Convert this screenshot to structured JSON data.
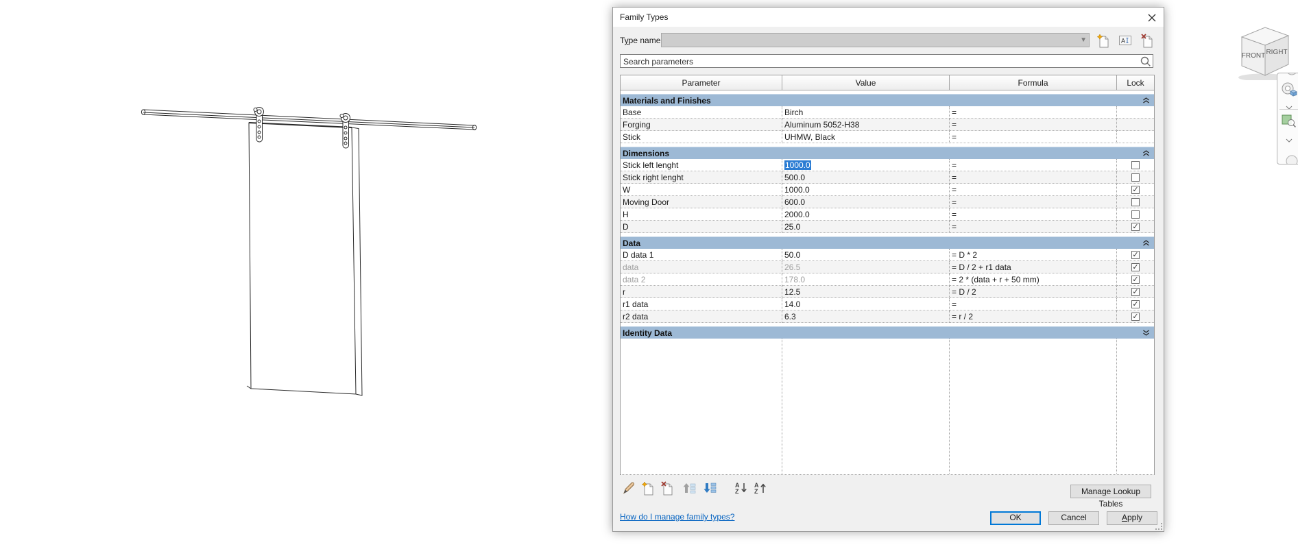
{
  "dialog": {
    "title": "Family Types",
    "type_name": {
      "label": "Type name:",
      "mnemonic_index": 1,
      "value": ""
    },
    "search": {
      "placeholder": "Search parameters"
    },
    "table": {
      "headers": [
        "Parameter",
        "Value",
        "Formula",
        "Lock"
      ],
      "sections": [
        {
          "name": "Materials and Finishes",
          "collapse": "up",
          "rows": [
            {
              "param": "Base",
              "value": "Birch",
              "formula": "=",
              "lock": null
            },
            {
              "param": "Forging",
              "value": "Aluminum 5052-H38",
              "formula": "=",
              "lock": null
            },
            {
              "param": "Stick",
              "value": "UHMW, Black",
              "formula": "=",
              "lock": null
            }
          ]
        },
        {
          "name": "Dimensions",
          "collapse": "up",
          "rows": [
            {
              "param": "Stick left lenght",
              "value": "1000.0",
              "formula": "=",
              "lock": false,
              "selected": true
            },
            {
              "param": "Stick right lenght",
              "value": "500.0",
              "formula": "=",
              "lock": false
            },
            {
              "param": "W",
              "value": "1000.0",
              "formula": "=",
              "lock": true
            },
            {
              "param": "Moving Door",
              "value": "600.0",
              "formula": "=",
              "lock": false
            },
            {
              "param": "H",
              "value": "2000.0",
              "formula": "=",
              "lock": false
            },
            {
              "param": "D",
              "value": "25.0",
              "formula": "=",
              "lock": true
            }
          ]
        },
        {
          "name": "Data",
          "collapse": "up",
          "rows": [
            {
              "param": "D data 1",
              "value": "50.0",
              "formula": "= D * 2",
              "lock": true
            },
            {
              "param": "data",
              "value": "26.5",
              "formula": "= D / 2 + r1 data",
              "lock": true,
              "disabled": true
            },
            {
              "param": "data 2",
              "value": "178.0",
              "formula": "= 2 * (data + r + 50 mm)",
              "lock": true,
              "disabled": true
            },
            {
              "param": "r",
              "value": "12.5",
              "formula": "= D / 2",
              "lock": true
            },
            {
              "param": "r1 data",
              "value": "14.0",
              "formula": "=",
              "lock": true
            },
            {
              "param": "r2 data",
              "value": "6.3",
              "formula": "= r / 2",
              "lock": true
            }
          ]
        },
        {
          "name": "Identity Data",
          "collapse": "down",
          "rows": []
        }
      ]
    },
    "buttons": {
      "ok": "OK",
      "cancel": "Cancel",
      "apply": {
        "label": "Apply",
        "mnemonic_index": 0
      },
      "manage_lookup": {
        "label": "Manage Lookup Tables",
        "mnemonic_index": 4
      }
    },
    "help_link": "How do I manage family types?"
  },
  "viewcube": {
    "front": "FRONT",
    "right": "RIGHT"
  },
  "icons": {
    "close": "x-cross",
    "combo-chevron": "triangle-down",
    "new-type": "page-with-star",
    "rename-type": "boxed-A-cursor",
    "delete-type": "page-with-x",
    "search": "magnifier",
    "section-collapse": "double-chevron-up",
    "section-expand": "double-chevron-down",
    "edit-parameter": "pencil",
    "new-parameter": "page-with-star",
    "delete-parameter": "page-with-x",
    "move-up": "up-arrow-rows",
    "move-down": "down-arrow-rows",
    "sort-ascending": "AZ-down-arrow",
    "sort-descending": "AZ-up-arrow",
    "steering-wheel": "ring-with-cube",
    "zoom-region": "green-box-magnifier"
  },
  "colors": {
    "section_header": "#9db9d5",
    "selection": "#2b7cd3",
    "link": "#0563c1",
    "ok_border": "#0078d7",
    "dialog_bg": "#f0f0f0"
  }
}
